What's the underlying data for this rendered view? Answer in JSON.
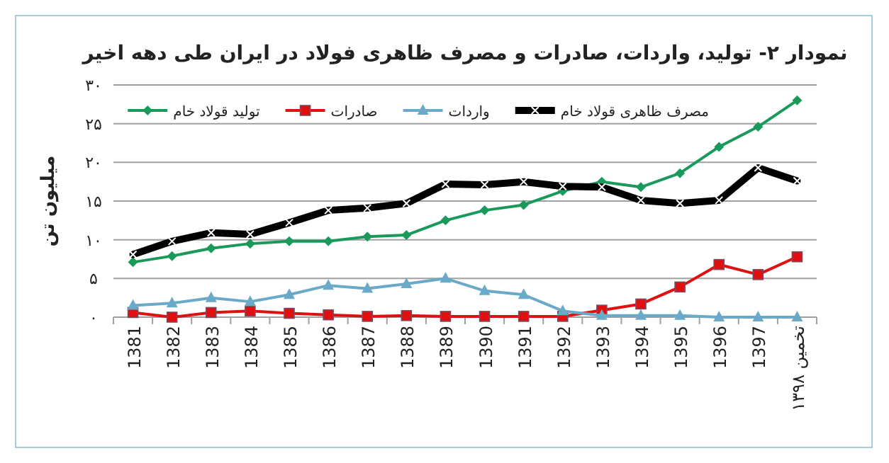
{
  "chart_data": {
    "type": "line",
    "title": "نمودار ۲- تولید، واردات، صادرات و مصرف ظاهری فولاد در ایران طی دهه اخیر",
    "ylabel": "میلیون تن",
    "categories": [
      "1381",
      "1382",
      "1383",
      "1384",
      "1385",
      "1386",
      "1387",
      "1388",
      "1389",
      "1390",
      "1391",
      "1392",
      "1393",
      "1394",
      "1395",
      "1396",
      "1397",
      "تخمین ۱۳۹۸"
    ],
    "ylim": [
      0,
      30
    ],
    "yticks": [
      {
        "value": 0,
        "label": "۰"
      },
      {
        "value": 5,
        "label": "۵"
      },
      {
        "value": 10,
        "label": "۱۰"
      },
      {
        "value": 15,
        "label": "۱۵"
      },
      {
        "value": 20,
        "label": "۲۰"
      },
      {
        "value": 25,
        "label": "۲۵"
      },
      {
        "value": 30,
        "label": "۳۰"
      }
    ],
    "grid": "y",
    "legend": "top",
    "series": [
      {
        "name": "مصرف ظاهری قولاد خام",
        "color": "#000000",
        "marker": "cross",
        "values": [
          8.1,
          9.8,
          10.9,
          10.7,
          12.2,
          13.8,
          14.1,
          14.7,
          17.2,
          17.1,
          17.5,
          16.9,
          16.8,
          15.1,
          14.7,
          15.1,
          19.3,
          17.6
        ]
      },
      {
        "name": "واردات",
        "color": "#6aaac8",
        "marker": "triangle",
        "values": [
          1.5,
          1.8,
          2.5,
          2.0,
          2.9,
          4.1,
          3.7,
          4.3,
          5.0,
          3.4,
          2.9,
          0.8,
          0.2,
          0.2,
          0.2,
          0.0,
          0.0,
          0.0
        ]
      },
      {
        "name": "صادرات",
        "color": "#e01010",
        "marker": "square",
        "values": [
          0.6,
          0.0,
          0.6,
          0.8,
          0.5,
          0.3,
          0.1,
          0.2,
          0.1,
          0.1,
          0.1,
          0.1,
          0.9,
          1.7,
          3.9,
          6.8,
          5.5,
          7.8
        ]
      },
      {
        "name": "تولید قولاد خام",
        "color": "#1a9a5a",
        "marker": "diamond",
        "values": [
          7.1,
          7.9,
          8.9,
          9.5,
          9.8,
          9.8,
          10.4,
          10.6,
          12.5,
          13.8,
          14.5,
          16.3,
          17.5,
          16.8,
          18.6,
          22.0,
          24.6,
          28.0
        ]
      }
    ]
  }
}
